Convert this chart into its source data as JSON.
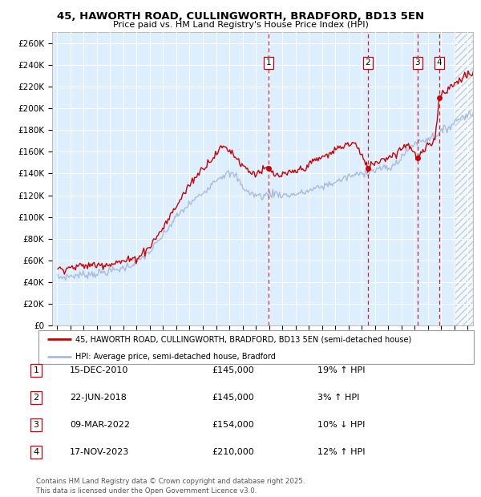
{
  "title_line1": "45, HAWORTH ROAD, CULLINGWORTH, BRADFORD, BD13 5EN",
  "title_line2": "Price paid vs. HM Land Registry's House Price Index (HPI)",
  "background_color": "#ffffff",
  "plot_bg_color": "#ddeeff",
  "grid_color": "#ffffff",
  "legend_entries": [
    "45, HAWORTH ROAD, CULLINGWORTH, BRADFORD, BD13 5EN (semi-detached house)",
    "HPI: Average price, semi-detached house, Bradford"
  ],
  "sale_prices": [
    145000,
    145000,
    154000,
    210000
  ],
  "sale_labels": [
    "1",
    "2",
    "3",
    "4"
  ],
  "footer": "Contains HM Land Registry data © Crown copyright and database right 2025.\nThis data is licensed under the Open Government Licence v3.0.",
  "ylim": [
    0,
    270000
  ],
  "yticks": [
    0,
    20000,
    40000,
    60000,
    80000,
    100000,
    120000,
    140000,
    160000,
    180000,
    200000,
    220000,
    240000,
    260000
  ],
  "hpi_color": "#aabbdd",
  "price_color": "#cc0000",
  "vline_color": "#cc0000",
  "table_dates": [
    "15-DEC-2010",
    "22-JUN-2018",
    "09-MAR-2022",
    "17-NOV-2023"
  ],
  "table_prices": [
    "£145,000",
    "£145,000",
    "£154,000",
    "£210,000"
  ],
  "table_hpi": [
    "19% ↑ HPI",
    "3% ↑ HPI",
    "10% ↓ HPI",
    "12% ↑ HPI"
  ]
}
